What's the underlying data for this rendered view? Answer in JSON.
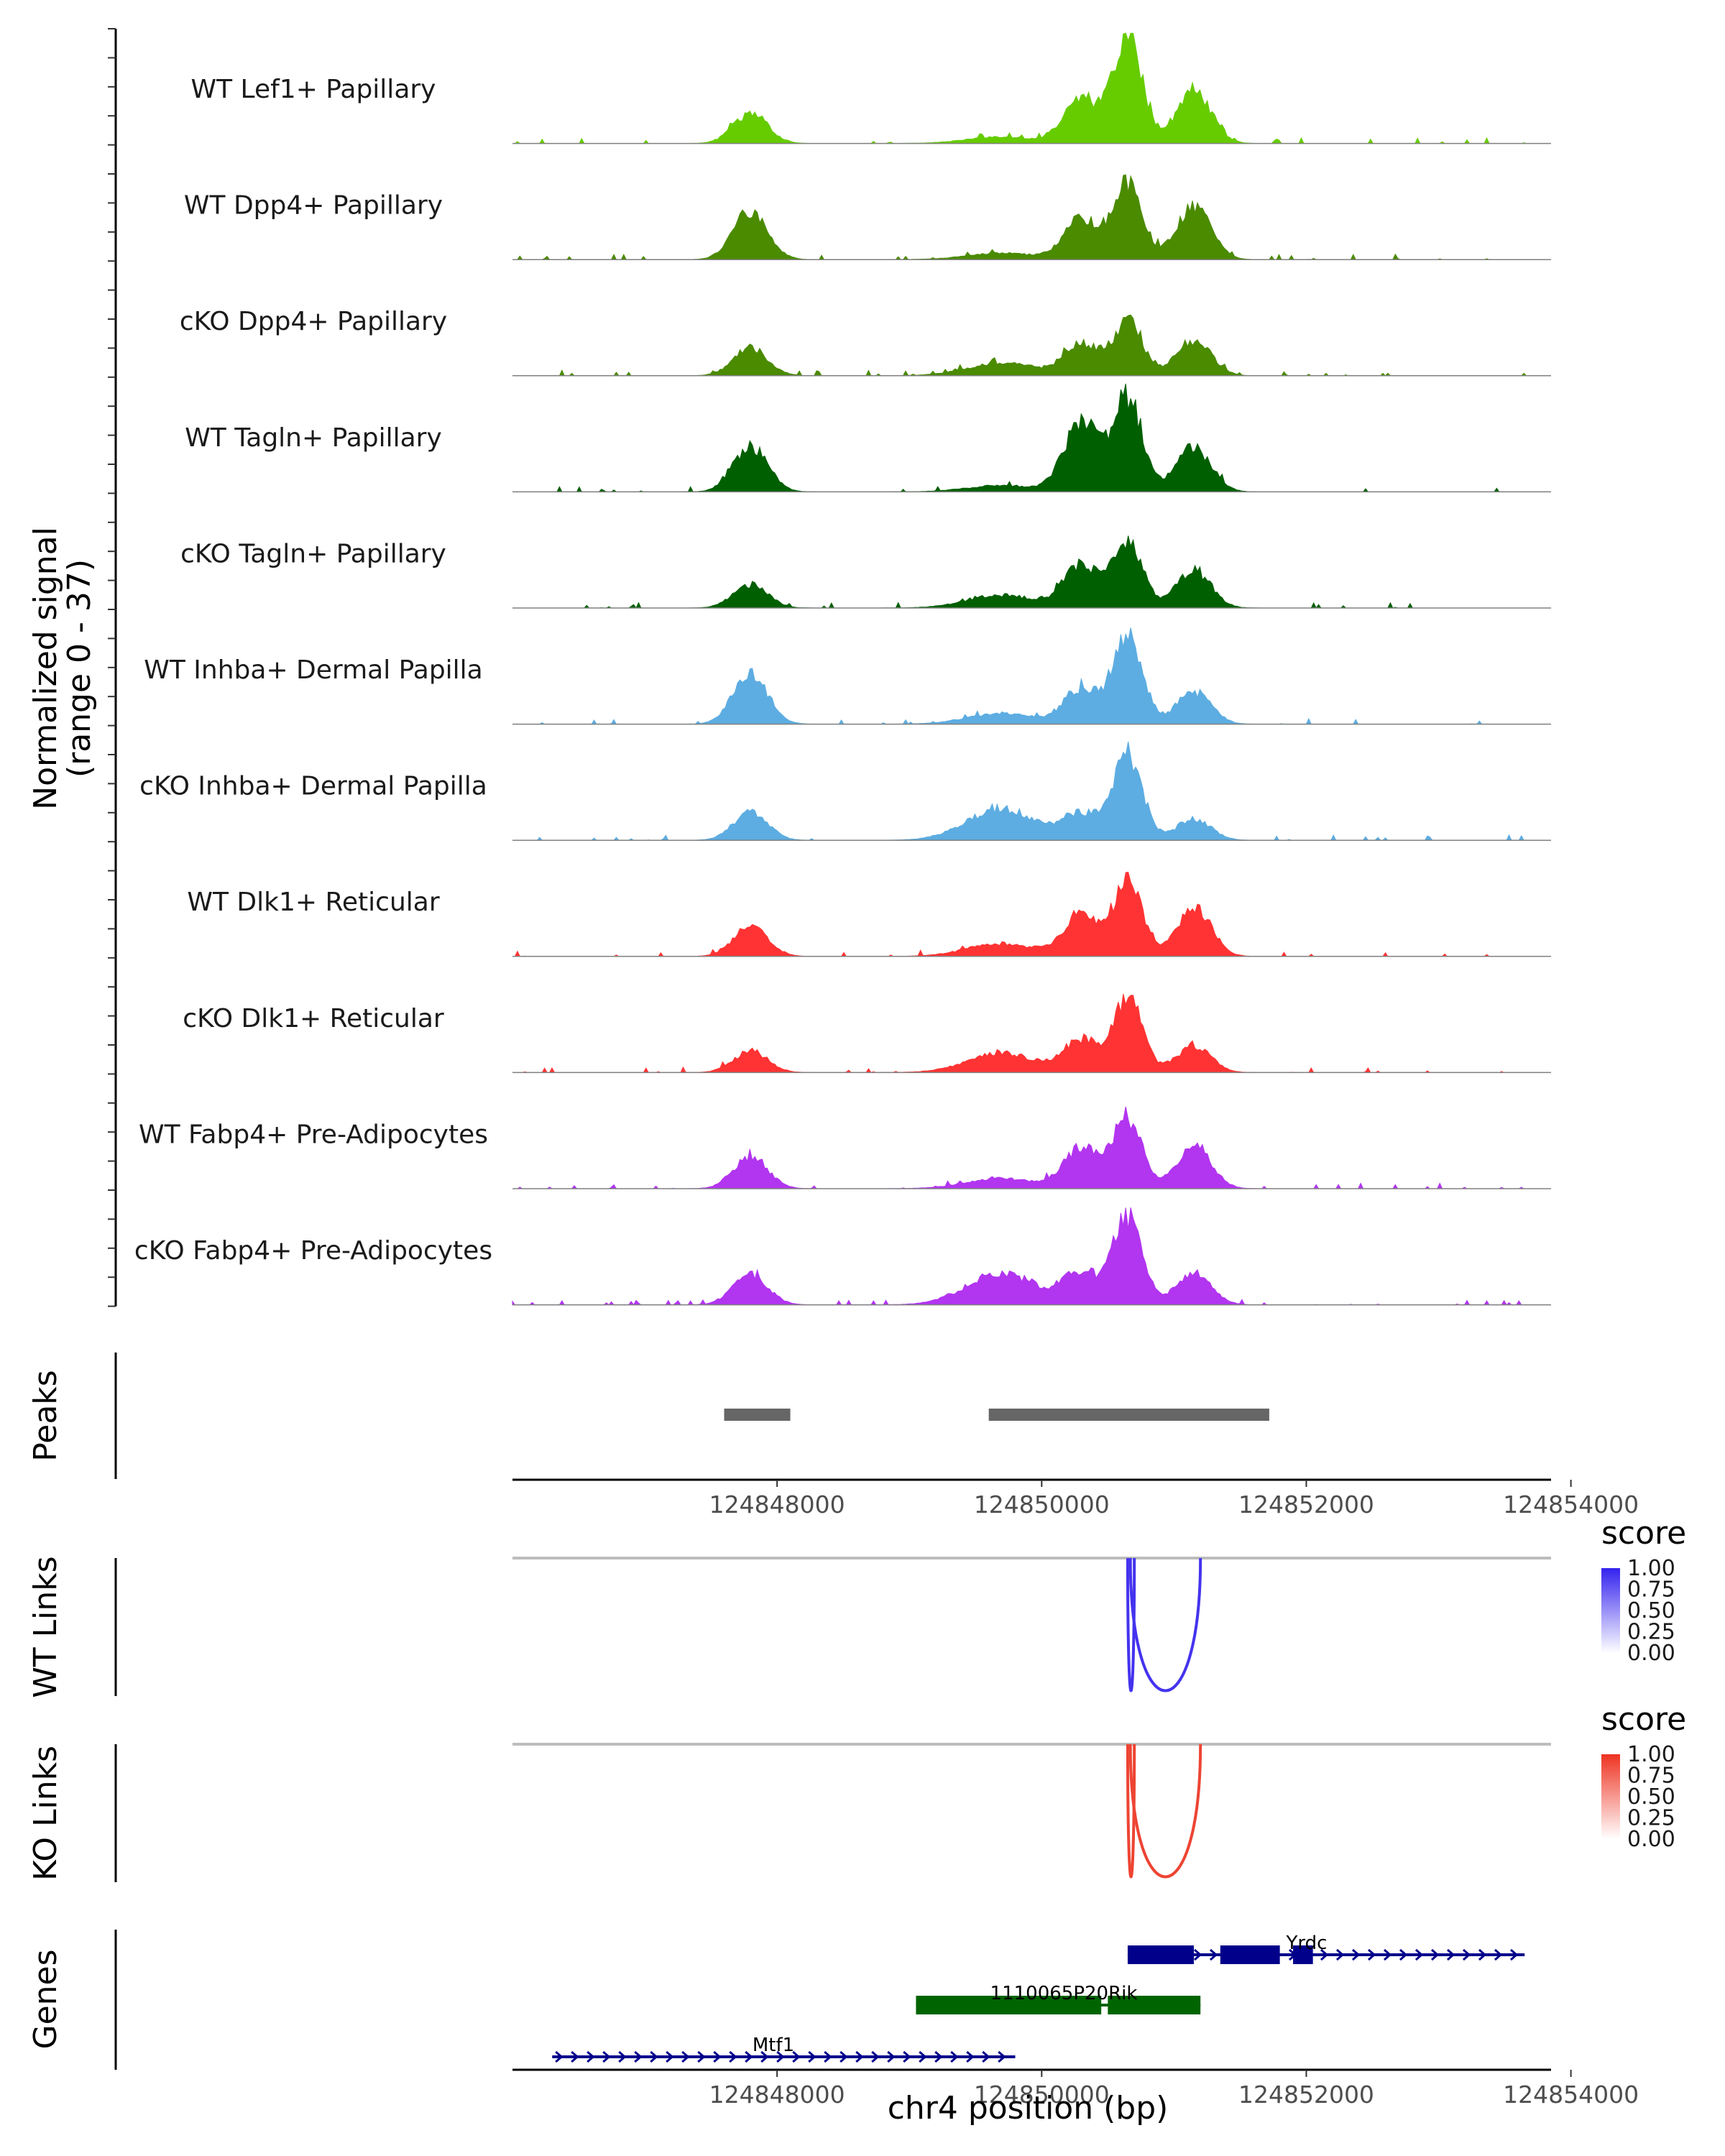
{
  "chart_data": {
    "type": "area",
    "region": {
      "chrom": "chr4",
      "start": 124846000,
      "end": 124853850
    },
    "xlabel": "chr4 position (bp)",
    "x_ticks": [
      124848000,
      124850000,
      124852000,
      124854000
    ],
    "x_tick_labels": [
      "124848000",
      "124850000",
      "124852000",
      "124854000"
    ],
    "coverage_ylabel": "Normalized signal",
    "coverage_range_label": "(range 0 - 37)",
    "ylim": [
      0,
      37
    ],
    "peak_center_bp": [
      124847800,
      124849700,
      124850300,
      124850650,
      124851150
    ],
    "tracks": [
      {
        "name": "WT Lef1+ Papillary",
        "color": "#66cc00",
        "peaks": [
          {
            "x": 124847800,
            "h": 0.28
          },
          {
            "x": 124850300,
            "h": 0.42
          },
          {
            "x": 124850650,
            "h": 1.0
          },
          {
            "x": 124851150,
            "h": 0.5
          },
          {
            "x": 124849700,
            "h": 0.06
          }
        ]
      },
      {
        "name": "WT Dpp4+ Papillary",
        "color": "#4a8b00",
        "peaks": [
          {
            "x": 124847800,
            "h": 0.45
          },
          {
            "x": 124850300,
            "h": 0.38
          },
          {
            "x": 124850650,
            "h": 0.7
          },
          {
            "x": 124851150,
            "h": 0.5
          },
          {
            "x": 124849700,
            "h": 0.06
          }
        ]
      },
      {
        "name": "cKO Dpp4+ Papillary",
        "color": "#4a8b00",
        "peaks": [
          {
            "x": 124847800,
            "h": 0.26
          },
          {
            "x": 124850300,
            "h": 0.3
          },
          {
            "x": 124850650,
            "h": 0.5
          },
          {
            "x": 124851150,
            "h": 0.33
          },
          {
            "x": 124849700,
            "h": 0.12
          }
        ]
      },
      {
        "name": "WT Tagln+ Papillary",
        "color": "#005f00",
        "peaks": [
          {
            "x": 124847800,
            "h": 0.42
          },
          {
            "x": 124850300,
            "h": 0.65
          },
          {
            "x": 124850650,
            "h": 0.88
          },
          {
            "x": 124851150,
            "h": 0.42
          },
          {
            "x": 124849700,
            "h": 0.06
          }
        ]
      },
      {
        "name": "cKO Tagln+ Papillary",
        "color": "#005f00",
        "peaks": [
          {
            "x": 124847800,
            "h": 0.22
          },
          {
            "x": 124850300,
            "h": 0.4
          },
          {
            "x": 124850650,
            "h": 0.62
          },
          {
            "x": 124851150,
            "h": 0.35
          },
          {
            "x": 124849700,
            "h": 0.12
          }
        ]
      },
      {
        "name": "WT Inhba+ Dermal Papilla",
        "color": "#5dade2",
        "peaks": [
          {
            "x": 124847800,
            "h": 0.47
          },
          {
            "x": 124850300,
            "h": 0.33
          },
          {
            "x": 124850650,
            "h": 0.84
          },
          {
            "x": 124851150,
            "h": 0.3
          },
          {
            "x": 124849700,
            "h": 0.1
          }
        ]
      },
      {
        "name": "cKO Inhba+ Dermal Papilla",
        "color": "#5dade2",
        "peaks": [
          {
            "x": 124847800,
            "h": 0.26
          },
          {
            "x": 124850300,
            "h": 0.25
          },
          {
            "x": 124850650,
            "h": 0.8
          },
          {
            "x": 124851150,
            "h": 0.2
          },
          {
            "x": 124849700,
            "h": 0.3
          }
        ]
      },
      {
        "name": "WT Dlk1+ Reticular",
        "color": "#ff3333",
        "peaks": [
          {
            "x": 124847800,
            "h": 0.28
          },
          {
            "x": 124850300,
            "h": 0.4
          },
          {
            "x": 124850650,
            "h": 0.68
          },
          {
            "x": 124851150,
            "h": 0.46
          },
          {
            "x": 124849700,
            "h": 0.12
          }
        ]
      },
      {
        "name": "cKO Dlk1+ Reticular",
        "color": "#ff3333",
        "peaks": [
          {
            "x": 124847800,
            "h": 0.2
          },
          {
            "x": 124850300,
            "h": 0.3
          },
          {
            "x": 124850650,
            "h": 0.7
          },
          {
            "x": 124851150,
            "h": 0.25
          },
          {
            "x": 124849700,
            "h": 0.18
          }
        ]
      },
      {
        "name": "WT Fabp4+ Pre-Adipocytes",
        "color": "#b235f0",
        "peaks": [
          {
            "x": 124847800,
            "h": 0.3
          },
          {
            "x": 124850300,
            "h": 0.38
          },
          {
            "x": 124850650,
            "h": 0.66
          },
          {
            "x": 124851150,
            "h": 0.4
          },
          {
            "x": 124849700,
            "h": 0.1
          }
        ]
      },
      {
        "name": "cKO Fabp4+ Pre-Adipocytes",
        "color": "#b235f0",
        "peaks": [
          {
            "x": 124847800,
            "h": 0.28
          },
          {
            "x": 124850300,
            "h": 0.3
          },
          {
            "x": 124850650,
            "h": 0.82
          },
          {
            "x": 124851150,
            "h": 0.3
          },
          {
            "x": 124849700,
            "h": 0.3
          }
        ]
      }
    ],
    "peaks_track": {
      "label": "Peaks",
      "color": "#666666",
      "intervals": [
        [
          124847600,
          124848100
        ],
        [
          124849600,
          124851720
        ]
      ]
    },
    "links_tracks": [
      {
        "label": "WT Links",
        "color": "#4433ee",
        "links": [
          {
            "start": 124850650,
            "end": 124850700,
            "score": 1.0
          },
          {
            "start": 124850670,
            "end": 124851200,
            "score": 1.0
          }
        ]
      },
      {
        "label": "KO Links",
        "color": "#ee4433",
        "links": [
          {
            "start": 124850650,
            "end": 124850700,
            "score": 1.0
          },
          {
            "start": 124850670,
            "end": 124851200,
            "score": 1.0
          }
        ]
      }
    ],
    "score_legend": {
      "title": "score",
      "ticks": [
        "1.00",
        "0.75",
        "0.50",
        "0.25",
        "0.00"
      ],
      "wt_color": "#3322ee",
      "ko_color": "#ee3322"
    },
    "genes_track": {
      "label": "Genes",
      "genes": [
        {
          "name": "Yrdc",
          "strand": "+",
          "color": "#00008b",
          "start": 124850650,
          "end": 124853650,
          "exons": [
            [
              124850650,
              124851150
            ],
            [
              124851350,
              124851800
            ],
            [
              124851900,
              124852050
            ]
          ]
        },
        {
          "name": "1110065P20Rik",
          "strand": "-",
          "color": "#006400",
          "start": 124849050,
          "end": 124851200,
          "exons": [
            [
              124849050,
              124850450
            ],
            [
              124850500,
              124851200
            ]
          ]
        },
        {
          "name": "Mtf1",
          "strand": "+",
          "color": "#00008b",
          "start": 124846300,
          "end": 124849800,
          "exons": []
        }
      ]
    }
  }
}
